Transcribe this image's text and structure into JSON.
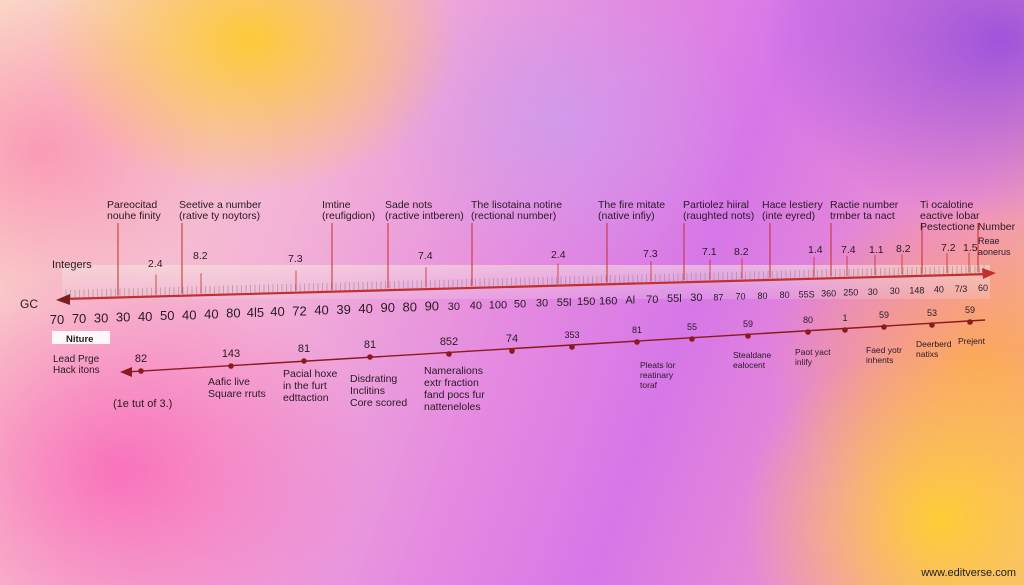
{
  "page": {
    "left_labels": [
      "Integers",
      "GC",
      "Lead Prge",
      "Hack itons",
      "(1e tut of 3.)"
    ],
    "niture_tag": "Niture",
    "watermark": "www.editverse.com"
  },
  "colors": {
    "axis_red": "#c0302e",
    "axis_dark": "#7a1e22",
    "dot": "#8a1a1e"
  },
  "top_annotations": [
    {
      "lines": [
        "Pareocitad",
        "nouhe finity"
      ]
    },
    {
      "lines": [
        "Seetive a number",
        "(rative ty noytors)"
      ]
    },
    {
      "lines": [
        "Imtine",
        "(reufigdion)"
      ]
    },
    {
      "lines": [
        "Sade nots",
        "(ractive intberen)"
      ]
    },
    {
      "lines": [
        "The lisotaina notine",
        "(rectional number)"
      ]
    },
    {
      "lines": [
        "The fire mitate",
        "(native infiy)"
      ]
    },
    {
      "lines": [
        "Partiolez hiiral",
        "(raughted nots)"
      ]
    },
    {
      "lines": [
        "Hace lestiery",
        "(inte eyred)"
      ]
    },
    {
      "lines": [
        "Ractie number",
        "trmber ta nact"
      ]
    },
    {
      "lines": [
        "Ti ocalotine",
        "eactive lobar",
        "Pestectione Number"
      ]
    },
    {
      "lines": [
        "Reae",
        "aonerus"
      ]
    }
  ],
  "upper_values": [
    "2.4",
    "8.2",
    "7.3",
    "7.4",
    "2.4",
    "7.3",
    "7.1",
    "8.2",
    "1.4",
    "7.4",
    "1.1",
    "8.2",
    "7.2",
    "1.5"
  ],
  "ruler_ticks": [
    "70",
    "70",
    "30",
    "30",
    "40",
    "50",
    "40",
    "40",
    "80",
    "4l5",
    "40",
    "72",
    "40",
    "39",
    "40",
    "90",
    "80",
    "90",
    "30",
    "40",
    "100",
    "50",
    "30",
    "55l",
    "150",
    "160",
    "Al",
    "70",
    "55l",
    "30",
    "87",
    "70",
    "80",
    "80",
    "55S",
    "360",
    "250",
    "30",
    "30",
    "148",
    "40",
    "7/3",
    "60"
  ],
  "lower_values": [
    "82",
    "143",
    "81",
    "81",
    "852",
    "74",
    "353",
    "81",
    "55",
    "59",
    "80",
    "1",
    "59",
    "53",
    "59"
  ],
  "lower_annotations": [
    {
      "lines": [
        "Aafic live",
        "",
        "Square rruts"
      ]
    },
    {
      "lines": [
        "Pacial hoxe",
        "in the furt",
        "edttaction"
      ]
    },
    {
      "lines": [
        "Disdrating",
        "",
        "",
        "Inclitins",
        "Core scored"
      ]
    },
    {
      "lines": [
        "Nameralions",
        "extr fraction",
        "fand pocs fur",
        "natteneloles"
      ]
    },
    {
      "lines": [
        "Pleats lor",
        "reatinary",
        "toraf"
      ]
    },
    {
      "lines": [
        "Stealdane",
        "ealocent"
      ]
    },
    {
      "lines": [
        "Paot yact",
        "inlify"
      ]
    },
    {
      "lines": [
        "Faed yotr",
        "inhents"
      ]
    },
    {
      "lines": [
        "Deerberd",
        "natixs"
      ]
    },
    {
      "lines": [
        "Prejent"
      ]
    }
  ]
}
